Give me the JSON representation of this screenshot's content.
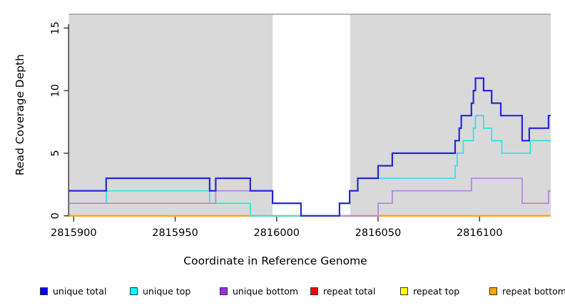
{
  "chart_data": {
    "type": "line",
    "style": "step",
    "title": "",
    "xlabel": "Coordinate in Reference Genome",
    "ylabel": "Read Coverage Depth",
    "xlim": [
      2815897.6,
      2816135.1
    ],
    "ylim": [
      0,
      16.1
    ],
    "x_end": 2816135.1,
    "x_ticks": [
      "2815900",
      "2815950",
      "2816000",
      "2816050",
      "2816100"
    ],
    "y_ticks": [
      "0",
      "5",
      "10",
      "15"
    ],
    "panel_color": "#d9d9d9",
    "white_band_x": [
      2815998,
      2816036.3
    ],
    "grid": "off",
    "legend_position": "bottom",
    "baseline_segments": [
      {
        "x": [
          2815987,
          2816012
        ],
        "y": 0,
        "color": "#90d795"
      },
      {
        "x": [
          2816032,
          2816051
        ],
        "y": 0,
        "color": "#d684b8"
      }
    ],
    "series": [
      {
        "name": "unique total",
        "color": "#2626df",
        "width": 2.2,
        "points": [
          [
            2815897.6,
            2
          ],
          [
            2815916,
            3
          ],
          [
            2815967,
            2
          ],
          [
            2815970,
            3
          ],
          [
            2815987,
            2
          ],
          [
            2815998,
            1
          ],
          [
            2816012,
            0
          ],
          [
            2816031,
            1
          ],
          [
            2816036,
            2
          ],
          [
            2816040,
            3
          ],
          [
            2816050,
            4
          ],
          [
            2816057,
            5
          ],
          [
            2816088,
            6
          ],
          [
            2816090,
            7
          ],
          [
            2816091,
            8
          ],
          [
            2816096,
            9
          ],
          [
            2816097,
            10
          ],
          [
            2816098,
            11
          ],
          [
            2816102,
            10
          ],
          [
            2816106,
            9
          ],
          [
            2816110.5,
            8
          ],
          [
            2816121,
            6
          ],
          [
            2816124.5,
            7
          ],
          [
            2816134,
            8
          ]
        ]
      },
      {
        "name": "unique top",
        "color": "#2fe5e8",
        "width": 1.8,
        "points": [
          [
            2815897.6,
            1
          ],
          [
            2815916,
            2
          ],
          [
            2815967,
            1
          ],
          [
            2815987,
            0
          ],
          [
            2816031,
            1
          ],
          [
            2816036,
            2
          ],
          [
            2816040,
            3
          ],
          [
            2816088,
            4
          ],
          [
            2816089,
            5
          ],
          [
            2816092,
            6
          ],
          [
            2816097,
            7
          ],
          [
            2816098,
            8
          ],
          [
            2816102,
            7
          ],
          [
            2816106,
            6
          ],
          [
            2816111,
            5
          ],
          [
            2816125,
            6
          ]
        ]
      },
      {
        "name": "unique bottom",
        "color": "#b788df",
        "width": 1.8,
        "points": [
          [
            2815897.6,
            1
          ],
          [
            2815970,
            2
          ],
          [
            2815998,
            1
          ],
          [
            2816012,
            0
          ],
          [
            2816050,
            1
          ],
          [
            2816057,
            2
          ],
          [
            2816096,
            3
          ],
          [
            2816121,
            1
          ],
          [
            2816134,
            2
          ]
        ]
      },
      {
        "name": "repeat total",
        "color": "#ff0000",
        "width": 1.8,
        "points": [
          [
            2815897.6,
            0
          ]
        ]
      },
      {
        "name": "repeat top",
        "color": "#ffff00",
        "width": 1.8,
        "points": [
          [
            2815897.6,
            0
          ]
        ]
      },
      {
        "name": "repeat bottom",
        "color": "#ffa217",
        "width": 2.0,
        "points": [
          [
            2815897.6,
            0
          ]
        ]
      }
    ]
  },
  "axes": {
    "x_title": "Coordinate in Reference Genome",
    "y_title": "Read Coverage Depth"
  },
  "legend": {
    "items": [
      {
        "label": "unique total",
        "color": "#0000ff"
      },
      {
        "label": "unique top",
        "color": "#00ffff"
      },
      {
        "label": "unique bottom",
        "color": "#9b30d9"
      },
      {
        "label": "repeat total",
        "color": "#ff0000"
      },
      {
        "label": "repeat top",
        "color": "#ffff00"
      },
      {
        "label": "repeat bottom",
        "color": "#ffa500"
      }
    ]
  }
}
